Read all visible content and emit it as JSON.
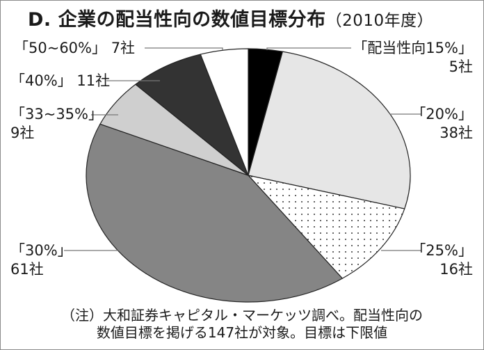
{
  "title": {
    "main": "D. 企業の配当性向の数値目標分布",
    "sub": "（2010年度）"
  },
  "labels": {
    "s15": {
      "name": "「配当性向15%」",
      "count": "5社"
    },
    "s20": {
      "name": "「20%」",
      "count": "38社"
    },
    "s25": {
      "name": "「25%」",
      "count": "16社"
    },
    "s30": {
      "name": "「30%」",
      "count": "61社"
    },
    "s33": {
      "name": "「33~35%」",
      "count": "9社"
    },
    "s40": {
      "name": "「40%」",
      "count": "11社"
    },
    "s50": {
      "name": "「50~60%」",
      "count": "7社"
    }
  },
  "note": {
    "line1": "（注）大和証券キャピタル・マーケッツ調べ。配当性向の",
    "line2": "数値目標を掲げる147社が対象。目標は下限値"
  },
  "colors": {
    "s15": "#000000",
    "s20": "#e6e6e6",
    "s25": "#ffffff",
    "s30": "#858585",
    "s33": "#cfcfcf",
    "s40": "#333333",
    "s50": "#ffffff",
    "stroke": "#222222",
    "leader": "#777777"
  },
  "chart_data": {
    "type": "pie",
    "title": "D. 企業の配当性向の数値目標分布（2010年度）",
    "categories": [
      "配当性向15%",
      "20%",
      "25%",
      "30%",
      "33~35%",
      "40%",
      "50~60%"
    ],
    "values": [
      5,
      38,
      16,
      61,
      9,
      11,
      7
    ],
    "unit": "社",
    "total": 147,
    "start_angle": "12 o'clock",
    "direction": "clockwise",
    "fills": [
      "black",
      "light gray",
      "dotted white",
      "medium gray",
      "light gray",
      "dark gray",
      "white"
    ],
    "note": "（注）大和証券キャピタル・マーケッツ調べ。配当性向の数値目標を掲げる147社が対象。目標は下限値"
  }
}
